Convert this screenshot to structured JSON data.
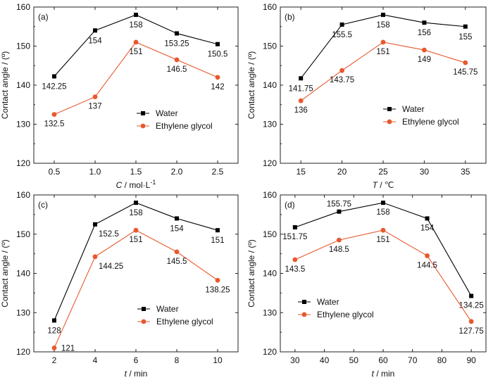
{
  "colors": {
    "water": "#000000",
    "glycol": "#E8582E"
  },
  "chart_data": [
    {
      "type": "line",
      "panel_label": "(a)",
      "x": [
        0.5,
        1.0,
        1.5,
        2.0,
        2.5
      ],
      "x_ticks": [
        "0.5",
        "1.0",
        "1.5",
        "2.0",
        "2.5"
      ],
      "xlim": [
        0.25,
        2.75
      ],
      "xlabel": {
        "sym": "C",
        "unit": " / mol·L",
        "sup": "-1"
      },
      "ylabel": "Contact angle / (º)",
      "ylim": [
        120,
        160
      ],
      "y_ticks": [
        120,
        130,
        140,
        150,
        160
      ],
      "legend": {
        "position": "middle-right",
        "water": "Water",
        "glycol": "Ethylene glycol"
      },
      "series": [
        {
          "name": "Water",
          "values": [
            142.25,
            154,
            158,
            153.25,
            150.5
          ],
          "labels": [
            "142.25",
            "154",
            "158",
            "153.25",
            "150.5"
          ],
          "lines": true
        },
        {
          "name": "Ethylene glycol",
          "values": [
            132.5,
            137,
            151,
            146.5,
            142
          ],
          "labels": [
            "132.5",
            "137",
            "151",
            "146.5",
            "142"
          ],
          "lines": true
        }
      ]
    },
    {
      "type": "line",
      "panel_label": "(b)",
      "x": [
        15,
        20,
        25,
        30,
        35
      ],
      "x_ticks": [
        "15",
        "20",
        "25",
        "30",
        "35"
      ],
      "xlim": [
        12.5,
        37.5
      ],
      "xlabel": {
        "sym": "T",
        "unit": " / ℃",
        "sup": ""
      },
      "ylabel": "Contact angle / (º)",
      "ylim": [
        120,
        160
      ],
      "y_ticks": [
        120,
        130,
        140,
        150,
        160
      ],
      "legend": {
        "position": "middle-right",
        "water": "Water",
        "glycol": "Ethylene glycol"
      },
      "series": [
        {
          "name": "Water",
          "values": [
            141.75,
            155.5,
            158,
            156,
            155
          ],
          "labels": [
            "141.75",
            "155.5",
            "158",
            "156",
            "155"
          ],
          "lines": true
        },
        {
          "name": "Ethylene glycol",
          "values": [
            136,
            143.75,
            151,
            149,
            145.75
          ],
          "labels": [
            "136",
            "143.75",
            "151",
            "149",
            "145.75"
          ],
          "lines": true
        }
      ]
    },
    {
      "type": "line",
      "panel_label": "(c)",
      "x": [
        2,
        4,
        6,
        8,
        10
      ],
      "x_ticks": [
        "2",
        "4",
        "6",
        "8",
        "10"
      ],
      "xlim": [
        1,
        11
      ],
      "xlabel": {
        "sym": "t",
        "unit": " / min",
        "sup": ""
      },
      "ylabel": "Contact angle / (º)",
      "ylim": [
        120,
        160
      ],
      "y_ticks": [
        120,
        130,
        140,
        150,
        160
      ],
      "legend": {
        "position": "lower-right",
        "water": "Water",
        "glycol": "Ethylene glycol"
      },
      "series": [
        {
          "name": "Water",
          "values": [
            128,
            152.5,
            158,
            154,
            151
          ],
          "labels": [
            "128",
            "152.5",
            "158",
            "154",
            "151"
          ],
          "lines": true
        },
        {
          "name": "Ethylene glycol",
          "values": [
            121,
            144.25,
            151,
            145.5,
            138.25
          ],
          "labels": [
            "121",
            "144.25",
            "151",
            "145.5",
            "138.25"
          ],
          "lines": true
        }
      ]
    },
    {
      "type": "line",
      "panel_label": "(d)",
      "x": [
        30,
        45,
        60,
        75,
        90
      ],
      "x_ticks": [
        "30",
        "40",
        "50",
        "60",
        "70",
        "80",
        "90"
      ],
      "xlim": [
        25,
        95
      ],
      "xlabel": {
        "sym": "t",
        "unit": " / min",
        "sup": ""
      },
      "ylabel": "Contact angle / (º)",
      "ylim": [
        120,
        160
      ],
      "y_ticks": [
        120,
        130,
        140,
        150,
        160
      ],
      "legend": {
        "position": "lower-left",
        "water": "Water",
        "glycol": "Ethylene glycol"
      },
      "series": [
        {
          "name": "Water",
          "values": [
            151.75,
            155.75,
            158,
            154,
            134.25
          ],
          "labels": [
            "151.75",
            "155.75",
            "158",
            "154",
            "134.25"
          ],
          "lines": true
        },
        {
          "name": "Ethylene glycol",
          "values": [
            143.5,
            148.5,
            151,
            144.5,
            127.75
          ],
          "labels": [
            "143.5",
            "148.5",
            "151",
            "144.5",
            "127.75"
          ],
          "lines": true
        }
      ]
    }
  ]
}
